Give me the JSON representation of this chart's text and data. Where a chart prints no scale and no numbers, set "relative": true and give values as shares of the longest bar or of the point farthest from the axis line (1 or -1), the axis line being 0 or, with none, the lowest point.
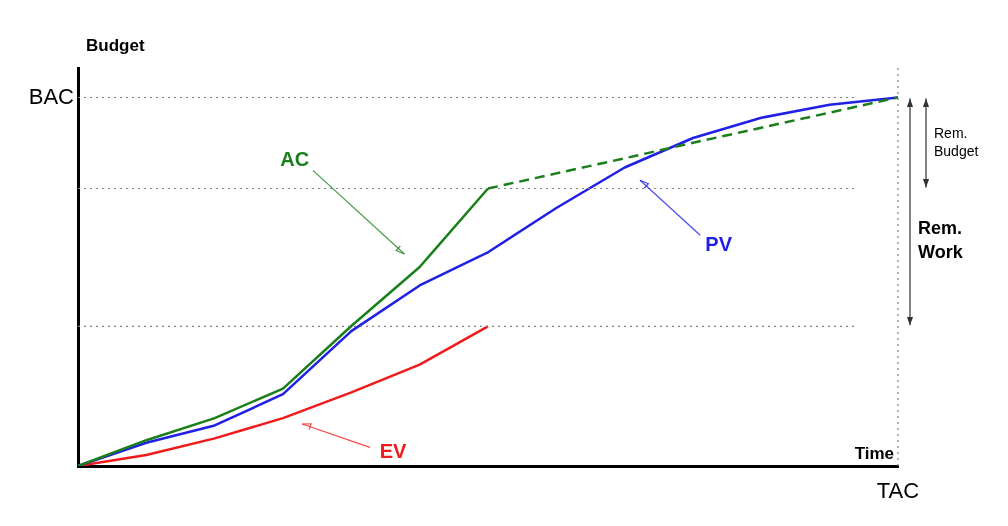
{
  "chart_data": {
    "type": "line",
    "relative": true,
    "xlabel": "Time",
    "ylabel": "Budget",
    "categories": [
      null,
      null,
      null,
      null,
      null,
      null,
      null,
      null,
      null,
      null,
      null,
      null,
      null
    ],
    "series": [
      {
        "name": "AC",
        "color": "#1a7f1a",
        "line_style": "solid",
        "values": [
          0,
          0.07,
          0.13,
          0.21,
          0.38,
          0.54,
          0.753,
          null,
          null,
          null,
          null,
          null,
          null
        ]
      },
      {
        "color": "#1a7f1a",
        "line_style": "dashed",
        "values": [
          null,
          null,
          null,
          null,
          null,
          null,
          0.753,
          0.794,
          0.835,
          0.877,
          0.918,
          0.959,
          1
        ]
      },
      {
        "name": "PV",
        "color": "#1f1fe6",
        "line_style": "solid",
        "values": [
          0,
          0.063,
          0.11,
          0.195,
          0.366,
          0.49,
          0.58,
          0.7,
          0.81,
          0.89,
          0.945,
          0.98,
          1
        ]
      },
      {
        "name": "EV",
        "color": "#f01a1a",
        "line_style": "solid",
        "values": [
          0,
          0.03,
          0.075,
          0.13,
          0.2,
          0.275,
          0.379,
          null,
          null,
          null,
          null,
          null,
          null
        ]
      }
    ],
    "ref_lines": [
      {
        "axis": "y",
        "value": 1,
        "label": "BAC",
        "line_style": "dotted",
        "color": "#808080"
      },
      {
        "axis": "y",
        "value": 0.753,
        "line_style": "dotted",
        "color": "#808080"
      },
      {
        "axis": "y",
        "value": 0.379,
        "line_style": "dotted",
        "color": "#808080"
      },
      {
        "axis": "x",
        "label": "TAC",
        "line_style": "dotted",
        "color": "#808080"
      }
    ],
    "annotations": [
      "Rem. Budget",
      "Rem. Work"
    ]
  }
}
